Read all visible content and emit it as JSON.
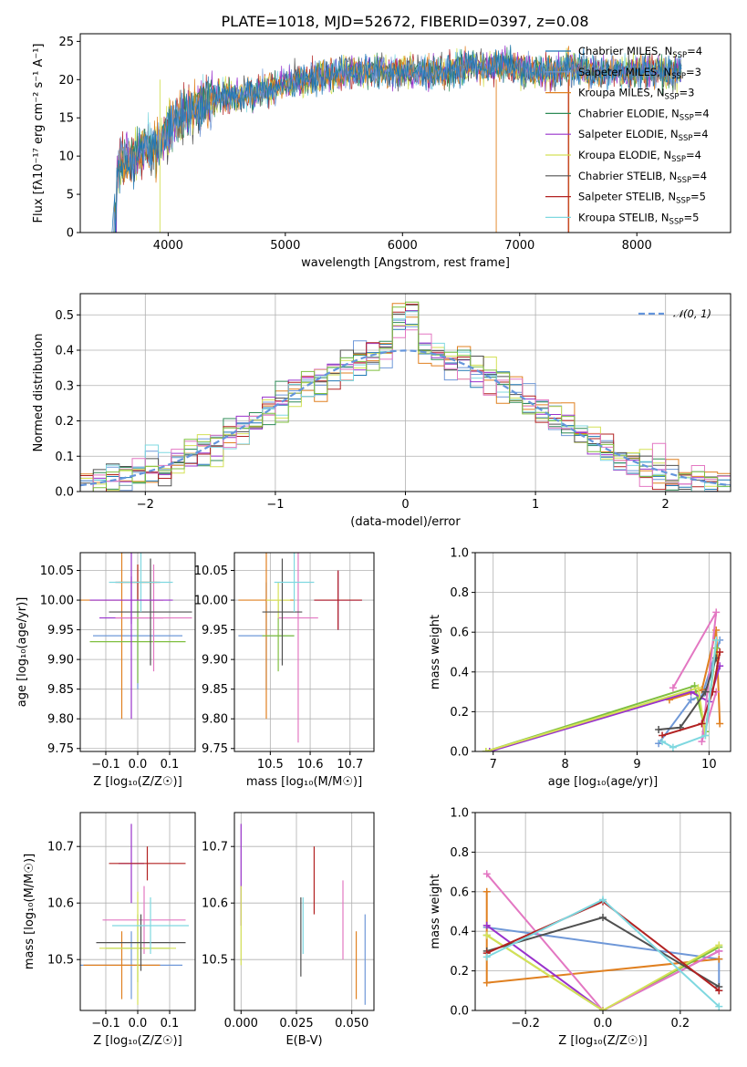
{
  "figure": {
    "title": "PLATE=1018, MJD=52672, FIBERID=0397, z=0.08"
  },
  "chart_data": [
    {
      "id": "spectrum",
      "type": "line",
      "xlabel": "wavelength [Angstrom, rest frame]",
      "ylabel": "Flux [fλ10⁻¹⁷ erg cm⁻² s⁻¹ A⁻¹]",
      "xlim": [
        3250,
        8800
      ],
      "ylim": [
        0,
        26
      ],
      "xticks": [
        4000,
        5000,
        6000,
        7000,
        8000
      ],
      "yticks": [
        0,
        5,
        10,
        15,
        20,
        25
      ],
      "grid": false,
      "legend": "top-right",
      "series": [
        {
          "name": "Chabrier MILES, N_SSP=4",
          "label_main": "Chabrier MILES, N",
          "label_sub": "SSP",
          "label_tail": "=4",
          "color": "#1f77b4"
        },
        {
          "name": "Salpeter MILES, N_SSP=3",
          "label_main": "Salpeter MILES, N",
          "label_sub": "SSP",
          "label_tail": "=3",
          "color": "#6f98d8"
        },
        {
          "name": "Kroupa MILES, N_SSP=3",
          "label_main": "Kroupa MILES, N",
          "label_sub": "SSP",
          "label_tail": "=3",
          "color": "#e08020"
        },
        {
          "name": "Chabrier ELODIE, N_SSP=4",
          "label_main": "Chabrier ELODIE, N",
          "label_sub": "SSP",
          "label_tail": "=4",
          "color": "#2e8b57"
        },
        {
          "name": "Salpeter ELODIE, N_SSP=4",
          "label_main": "Salpeter ELODIE, N",
          "label_sub": "SSP",
          "label_tail": "=4",
          "color": "#9932cc"
        },
        {
          "name": "Kroupa ELODIE, N_SSP=4",
          "label_main": "Kroupa ELODIE, N",
          "label_sub": "SSP",
          "label_tail": "=4",
          "color": "#d4e157"
        },
        {
          "name": "Chabrier STELIB, N_SSP=4",
          "label_main": "Chabrier STELIB, N",
          "label_sub": "SSP",
          "label_tail": "=4",
          "color": "#505050"
        },
        {
          "name": "Salpeter STELIB, N_SSP=5",
          "label_main": "Salpeter STELIB, N",
          "label_sub": "SSP",
          "label_tail": "=5",
          "color": "#b22222"
        },
        {
          "name": "Kroupa STELIB, N_SSP=5",
          "label_main": "Kroupa STELIB, N",
          "label_sub": "SSP",
          "label_tail": "=5",
          "color": "#7fd8e0"
        }
      ],
      "envelope": [
        [
          3500,
          7
        ],
        [
          3600,
          9
        ],
        [
          3700,
          10
        ],
        [
          3800,
          11
        ],
        [
          3900,
          11
        ],
        [
          4000,
          13.5
        ],
        [
          4100,
          15
        ],
        [
          4200,
          16
        ],
        [
          4300,
          16.5
        ],
        [
          4400,
          17.5
        ],
        [
          4500,
          18
        ],
        [
          4600,
          18
        ],
        [
          4700,
          18
        ],
        [
          4800,
          18.5
        ],
        [
          4900,
          19
        ],
        [
          5000,
          19.5
        ],
        [
          5100,
          20
        ],
        [
          5200,
          20
        ],
        [
          5300,
          20.5
        ],
        [
          5400,
          20.5
        ],
        [
          5500,
          21
        ],
        [
          5600,
          21
        ],
        [
          5700,
          21
        ],
        [
          5800,
          21
        ],
        [
          5900,
          21
        ],
        [
          6000,
          21
        ],
        [
          6100,
          21
        ],
        [
          6200,
          21
        ],
        [
          6300,
          21
        ],
        [
          6400,
          21
        ],
        [
          6500,
          21.5
        ],
        [
          6600,
          22
        ],
        [
          6700,
          21.5
        ],
        [
          6800,
          22
        ],
        [
          6900,
          22
        ],
        [
          7000,
          21.5
        ],
        [
          7100,
          21
        ],
        [
          7200,
          21
        ],
        [
          7300,
          21
        ],
        [
          7400,
          21.5
        ],
        [
          7500,
          21.5
        ],
        [
          7600,
          21
        ],
        [
          7700,
          21
        ],
        [
          7800,
          21
        ],
        [
          7900,
          21
        ],
        [
          8000,
          21
        ],
        [
          8100,
          21
        ],
        [
          8200,
          21
        ],
        [
          8300,
          21
        ],
        [
          8400,
          21
        ]
      ]
    },
    {
      "id": "residuals",
      "type": "histogram",
      "xlabel": "(data-model)/error",
      "ylabel": "Normed distribution",
      "xlim": [
        -2.5,
        2.5
      ],
      "ylim": [
        0,
        0.56
      ],
      "xticks": [
        -2,
        -1,
        0,
        1,
        2
      ],
      "yticks": [
        0.0,
        0.1,
        0.2,
        0.3,
        0.4,
        0.5
      ],
      "grid": true,
      "legend": "top-right",
      "reference_label": "𝒩(0, 1)",
      "reference_color": "#6495dc"
    },
    {
      "id": "age-vs-Z",
      "type": "errorbar",
      "xlabel": "Z [log₁₀(Z/Z☉)]",
      "ylabel": "age  [log₁₀(age/yr)]",
      "xlim": [
        -0.18,
        0.18
      ],
      "ylim": [
        9.745,
        10.08
      ],
      "xticks": [
        -0.1,
        0.0,
        0.1
      ],
      "yticks": [
        9.75,
        9.8,
        9.85,
        9.9,
        9.95,
        10.0,
        10.05
      ],
      "grid": true,
      "points": [
        {
          "x": 0.0,
          "y": 9.94,
          "xerr": 0.14,
          "yerr": 0.09,
          "color": "#6f98d8"
        },
        {
          "x": -0.05,
          "y": 10.0,
          "xerr": 0.13,
          "yerr": 0.2,
          "color": "#e08020"
        },
        {
          "x": 0.0,
          "y": 9.93,
          "xerr": 0.15,
          "yerr": 0.07,
          "color": "#7fbf3f"
        },
        {
          "x": -0.02,
          "y": 9.97,
          "xerr": 0.1,
          "yerr": 0.17,
          "color": "#9932cc"
        },
        {
          "x": 0.05,
          "y": 9.97,
          "xerr": 0.12,
          "yerr": 0.09,
          "color": "#e377c2"
        },
        {
          "x": 0.0,
          "y": 10.03,
          "xerr": 0.06,
          "yerr": 0.03,
          "color": "#d4e157"
        },
        {
          "x": 0.04,
          "y": 9.98,
          "xerr": 0.13,
          "yerr": 0.09,
          "color": "#505050"
        },
        {
          "x": 0.0,
          "y": 10.03,
          "xerr": 0.07,
          "yerr": 0.03,
          "color": "#b22222"
        },
        {
          "x": 0.01,
          "y": 10.03,
          "xerr": 0.1,
          "yerr": 0.05,
          "color": "#7fd8e0"
        },
        {
          "x": -0.02,
          "y": 10.0,
          "xerr": 0.13,
          "yerr": 0.04,
          "color": "#9932cc"
        }
      ]
    },
    {
      "id": "age-vs-mass",
      "type": "errorbar",
      "xlabel": "mass [log₁₀(M/M☉)]",
      "ylabel": "",
      "xlim": [
        10.41,
        10.76
      ],
      "ylim": [
        9.745,
        10.08
      ],
      "xticks": [
        10.5,
        10.6,
        10.7
      ],
      "yticks": [
        9.75,
        9.8,
        9.85,
        9.9,
        9.95,
        10.0,
        10.05
      ],
      "grid": true,
      "points": [
        {
          "x": 10.49,
          "y": 9.94,
          "xerr": 0.07,
          "yerr": 0.09,
          "color": "#6f98d8"
        },
        {
          "x": 10.49,
          "y": 10.0,
          "xerr": 0.07,
          "yerr": 0.2,
          "color": "#e08020"
        },
        {
          "x": 10.52,
          "y": 9.94,
          "xerr": 0.04,
          "yerr": 0.06,
          "color": "#7fbf3f"
        },
        {
          "x": 10.67,
          "y": 10.0,
          "xerr": 0.06,
          "yerr": 0.05,
          "color": "#9932cc"
        },
        {
          "x": 10.57,
          "y": 9.97,
          "xerr": 0.05,
          "yerr": 0.21,
          "color": "#e377c2"
        },
        {
          "x": 10.52,
          "y": 10.0,
          "xerr": 0.03,
          "yerr": 0.03,
          "color": "#d4e157"
        },
        {
          "x": 10.53,
          "y": 9.98,
          "xerr": 0.05,
          "yerr": 0.09,
          "color": "#505050"
        },
        {
          "x": 10.67,
          "y": 10.0,
          "xerr": 0.06,
          "yerr": 0.05,
          "color": "#b22222"
        },
        {
          "x": 10.56,
          "y": 10.03,
          "xerr": 0.05,
          "yerr": 0.05,
          "color": "#7fd8e0"
        }
      ]
    },
    {
      "id": "weight-vs-age",
      "type": "line",
      "xlabel": "age  [log₁₀(age/yr)]",
      "ylabel": "mass weight",
      "xlim": [
        6.75,
        10.3
      ],
      "ylim": [
        0.0,
        1.0
      ],
      "xticks": [
        7,
        8,
        9,
        10
      ],
      "yticks": [
        0.0,
        0.2,
        0.4,
        0.6,
        0.8,
        1.0
      ],
      "grid": true,
      "series": [
        {
          "color": "#6f98d8",
          "points": [
            [
              9.3,
              0.04
            ],
            [
              9.75,
              0.26
            ],
            [
              9.9,
              0.28
            ],
            [
              10.15,
              0.56
            ]
          ]
        },
        {
          "color": "#e08020",
          "points": [
            [
              9.45,
              0.26
            ],
            [
              9.9,
              0.31
            ],
            [
              10.1,
              0.61
            ],
            [
              10.15,
              0.14
            ]
          ]
        },
        {
          "color": "#7fbf3f",
          "points": [
            [
              6.9,
              0.0
            ],
            [
              9.8,
              0.33
            ],
            [
              9.95,
              0.1
            ],
            [
              10.1,
              0.52
            ]
          ]
        },
        {
          "color": "#9932cc",
          "points": [
            [
              6.95,
              0.0
            ],
            [
              9.75,
              0.3
            ],
            [
              10.0,
              0.25
            ],
            [
              10.15,
              0.43
            ]
          ]
        },
        {
          "color": "#e377c2",
          "points": [
            [
              9.5,
              0.32
            ],
            [
              10.1,
              0.7
            ],
            [
              9.9,
              0.05
            ],
            [
              10.1,
              0.3
            ]
          ]
        },
        {
          "color": "#d4e157",
          "points": [
            [
              6.9,
              0.0
            ],
            [
              9.85,
              0.32
            ],
            [
              9.95,
              0.08
            ],
            [
              10.1,
              0.56
            ]
          ]
        },
        {
          "color": "#505050",
          "points": [
            [
              9.3,
              0.11
            ],
            [
              9.6,
              0.12
            ],
            [
              9.95,
              0.3
            ],
            [
              10.1,
              0.47
            ]
          ]
        },
        {
          "color": "#b22222",
          "points": [
            [
              9.35,
              0.08
            ],
            [
              9.9,
              0.14
            ],
            [
              10.05,
              0.3
            ],
            [
              10.15,
              0.5
            ]
          ]
        },
        {
          "color": "#7fd8e0",
          "points": [
            [
              9.35,
              0.05
            ],
            [
              9.5,
              0.02
            ],
            [
              9.95,
              0.08
            ],
            [
              10.1,
              0.56
            ]
          ]
        }
      ]
    },
    {
      "id": "mass-vs-Z",
      "type": "errorbar",
      "xlabel": "Z [log₁₀(Z/Z☉)]",
      "ylabel": "mass [log₁₀(M/M☉)]",
      "xlim": [
        -0.18,
        0.18
      ],
      "ylim": [
        10.41,
        10.76
      ],
      "xticks": [
        -0.1,
        0.0,
        0.1
      ],
      "yticks": [
        10.5,
        10.6,
        10.7
      ],
      "grid": true,
      "points": [
        {
          "x": -0.02,
          "y": 10.49,
          "xerr": 0.16,
          "yerr": 0.06,
          "color": "#6f98d8"
        },
        {
          "x": -0.05,
          "y": 10.49,
          "xerr": 0.12,
          "yerr": 0.06,
          "color": "#e08020"
        },
        {
          "x": 0.0,
          "y": 10.52,
          "xerr": 0.1,
          "yerr": 0.06,
          "color": "#7fbf3f"
        },
        {
          "x": -0.02,
          "y": 10.67,
          "xerr": 0.04,
          "yerr": 0.07,
          "color": "#9932cc"
        },
        {
          "x": 0.02,
          "y": 10.57,
          "xerr": 0.13,
          "yerr": 0.06,
          "color": "#e377c2"
        },
        {
          "x": 0.0,
          "y": 10.52,
          "xerr": 0.12,
          "yerr": 0.1,
          "color": "#d4e157"
        },
        {
          "x": 0.01,
          "y": 10.53,
          "xerr": 0.14,
          "yerr": 0.05,
          "color": "#505050"
        },
        {
          "x": 0.03,
          "y": 10.67,
          "xerr": 0.12,
          "yerr": 0.03,
          "color": "#b22222"
        },
        {
          "x": 0.04,
          "y": 10.56,
          "xerr": 0.12,
          "yerr": 0.05,
          "color": "#7fd8e0"
        }
      ]
    },
    {
      "id": "mass-vs-EBV",
      "type": "errorbar",
      "xlabel": "E(B-V)",
      "ylabel": "",
      "xlim": [
        -0.003,
        0.06
      ],
      "ylim": [
        10.41,
        10.76
      ],
      "xticks": [
        0.0,
        0.025,
        0.05
      ],
      "yticks": [
        10.5,
        10.6,
        10.7
      ],
      "grid": true,
      "points": [
        {
          "x": 0.0,
          "y": 10.65,
          "xerr": 0.0,
          "yerr": 0.09,
          "color": "#9932cc"
        },
        {
          "x": 0.0,
          "y": 10.56,
          "xerr": 0.0,
          "yerr": 0.07,
          "color": "#d4e157"
        },
        {
          "x": 0.027,
          "y": 10.54,
          "xerr": 0.0,
          "yerr": 0.07,
          "color": "#505050"
        },
        {
          "x": 0.028,
          "y": 10.56,
          "xerr": 0.0,
          "yerr": 0.05,
          "color": "#7fd8e0"
        },
        {
          "x": 0.033,
          "y": 10.64,
          "xerr": 0.0,
          "yerr": 0.06,
          "color": "#b22222"
        },
        {
          "x": 0.046,
          "y": 10.57,
          "xerr": 0.0,
          "yerr": 0.07,
          "color": "#e377c2"
        },
        {
          "x": 0.052,
          "y": 10.49,
          "xerr": 0.0,
          "yerr": 0.06,
          "color": "#e08020"
        },
        {
          "x": 0.056,
          "y": 10.5,
          "xerr": 0.0,
          "yerr": 0.08,
          "color": "#6f98d8"
        }
      ]
    },
    {
      "id": "weight-vs-Z",
      "type": "line",
      "xlabel": "Z [log₁₀(Z/Z☉)]",
      "ylabel": "mass weight",
      "xlim": [
        -0.33,
        0.33
      ],
      "ylim": [
        0.0,
        1.0
      ],
      "xticks": [
        -0.2,
        0.0,
        0.2
      ],
      "yticks": [
        0.0,
        0.2,
        0.4,
        0.6,
        0.8,
        1.0
      ],
      "grid": true,
      "series": [
        {
          "color": "#6f98d8",
          "points": [
            [
              -0.3,
              0.42
            ],
            [
              0.3,
              0.26
            ],
            [
              0.3,
              0.1
            ]
          ]
        },
        {
          "color": "#e08020",
          "points": [
            [
              -0.3,
              0.6
            ],
            [
              -0.3,
              0.14
            ],
            [
              0.3,
              0.26
            ]
          ]
        },
        {
          "color": "#7fbf3f",
          "points": [
            [
              -0.3,
              0.38
            ],
            [
              0.0,
              0.0
            ],
            [
              0.3,
              0.32
            ]
          ]
        },
        {
          "color": "#9932cc",
          "points": [
            [
              -0.3,
              0.43
            ],
            [
              0.0,
              0.0
            ],
            [
              0.3,
              0.3
            ]
          ]
        },
        {
          "color": "#e377c2",
          "points": [
            [
              -0.3,
              0.69
            ],
            [
              0.0,
              0.0
            ],
            [
              0.3,
              0.3
            ]
          ]
        },
        {
          "color": "#d4e157",
          "points": [
            [
              -0.3,
              0.38
            ],
            [
              0.0,
              0.0
            ],
            [
              0.3,
              0.33
            ]
          ]
        },
        {
          "color": "#505050",
          "points": [
            [
              -0.3,
              0.3
            ],
            [
              0.0,
              0.47
            ],
            [
              0.3,
              0.12
            ]
          ]
        },
        {
          "color": "#b22222",
          "points": [
            [
              -0.3,
              0.29
            ],
            [
              0.0,
              0.55
            ],
            [
              0.3,
              0.1
            ]
          ]
        },
        {
          "color": "#7fd8e0",
          "points": [
            [
              -0.3,
              0.27
            ],
            [
              0.0,
              0.56
            ],
            [
              0.3,
              0.02
            ]
          ]
        }
      ]
    }
  ]
}
